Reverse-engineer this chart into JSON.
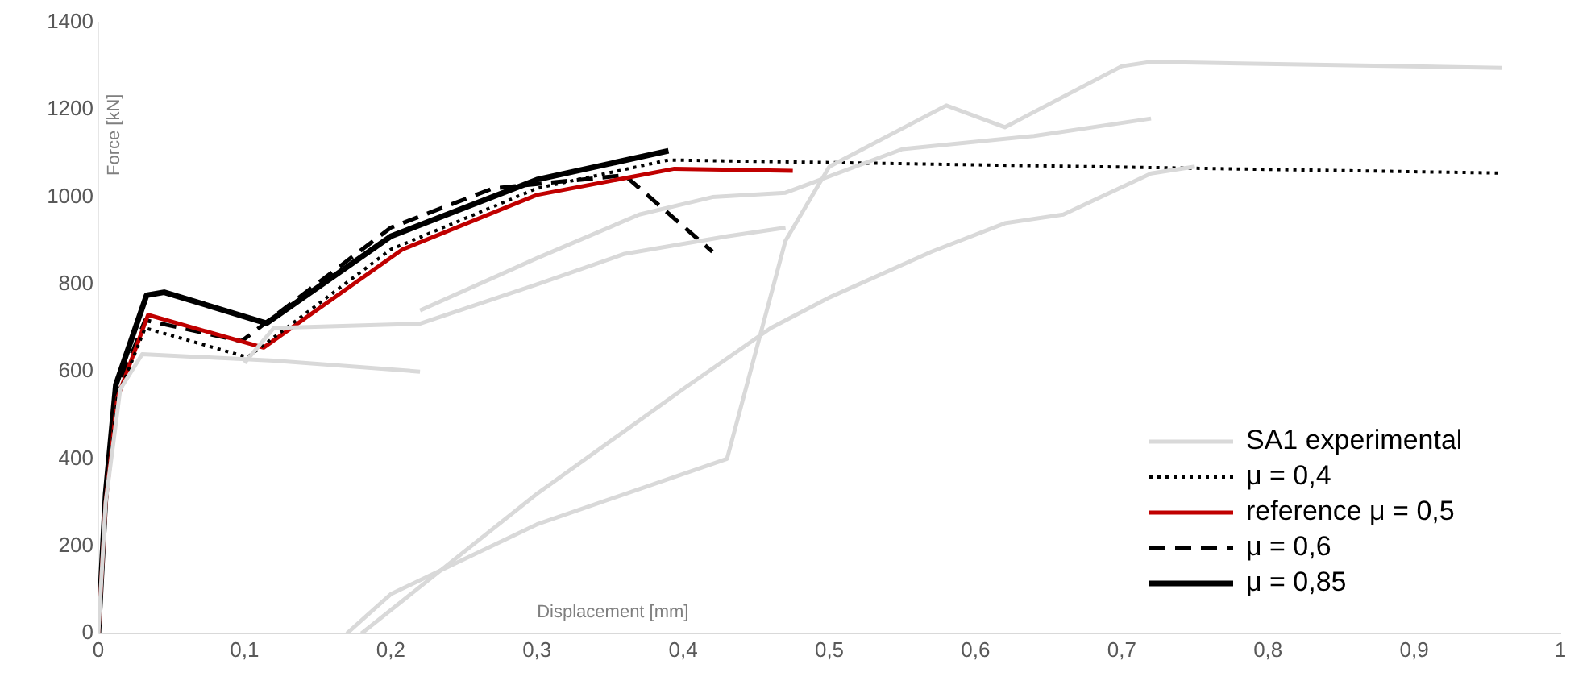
{
  "chart_data": {
    "type": "line",
    "xlabel": "Displacement [mm]",
    "ylabel": "Force [kN]",
    "xlim": [
      0,
      1
    ],
    "ylim": [
      0,
      1400
    ],
    "xticks": [
      0,
      {
        "value": 0.1,
        "label": "0,1"
      },
      {
        "value": 0.2,
        "label": "0,2"
      },
      {
        "value": 0.3,
        "label": "0,3"
      },
      {
        "value": 0.4,
        "label": "0,4"
      },
      {
        "value": 0.5,
        "label": "0,5"
      },
      {
        "value": 0.6,
        "label": "0,6"
      },
      {
        "value": 0.7,
        "label": "0,7"
      },
      {
        "value": 0.8,
        "label": "0,8"
      },
      {
        "value": 0.9,
        "label": "0,9"
      },
      1
    ],
    "yticks": [
      0,
      200,
      400,
      600,
      800,
      1000,
      1200,
      1400
    ],
    "grid": false,
    "legend": "bottom right",
    "marker": "none",
    "series": [
      {
        "name": "SA1 experimental",
        "color": "#d9d9d9",
        "line_style": "solid",
        "x": [
          0,
          0.005,
          0.015,
          0.03,
          0.12,
          0.22
        ],
        "values": [
          0,
          300,
          560,
          640,
          625,
          600
        ]
      },
      {
        "color": "#d9d9d9",
        "line_style": "solid",
        "x": [
          0.17,
          0.2,
          0.3,
          0.43,
          0.47,
          0.5,
          0.58,
          0.62,
          0.7,
          0.72,
          0.96
        ],
        "values": [
          0,
          90,
          250,
          400,
          900,
          1070,
          1210,
          1160,
          1300,
          1310,
          1296
        ]
      },
      {
        "color": "#d9d9d9",
        "line_style": "solid",
        "x": [
          0.18,
          0.3,
          0.4,
          0.46,
          0.5,
          0.57,
          0.62,
          0.66,
          0.72,
          0.75
        ],
        "values": [
          0,
          320,
          560,
          700,
          770,
          875,
          940,
          960,
          1054,
          1070
        ]
      },
      {
        "color": "#d9d9d9",
        "line_style": "solid",
        "x": [
          0.1,
          0.12,
          0.22,
          0.3,
          0.36,
          0.43,
          0.47
        ],
        "values": [
          620,
          700,
          710,
          800,
          870,
          910,
          930
        ]
      },
      {
        "color": "#d9d9d9",
        "line_style": "solid",
        "x": [
          0.22,
          0.3,
          0.37,
          0.42,
          0.47,
          0.55,
          0.64,
          0.72
        ],
        "values": [
          740,
          860,
          960,
          1000,
          1010,
          1110,
          1140,
          1180
        ]
      },
      {
        "name": "μ = 0,4",
        "color": "#000000",
        "line_style": "dotted",
        "x": [
          0,
          0.005,
          0.013,
          0.032,
          0.102,
          0.2,
          0.3,
          0.39,
          0.96
        ],
        "values": [
          0,
          300,
          540,
          700,
          633,
          880,
          1020,
          1085,
          1055
        ]
      },
      {
        "name": "reference μ = 0,5",
        "color": "#c00000",
        "line_style": "solid",
        "x": [
          0,
          0.005,
          0.013,
          0.034,
          0.113,
          0.208,
          0.3,
          0.394,
          0.475
        ],
        "values": [
          0,
          300,
          540,
          730,
          655,
          880,
          1005,
          1065,
          1060
        ]
      },
      {
        "name": "μ = 0,6",
        "color": "#000000",
        "line_style": "dashed",
        "x": [
          0,
          0.005,
          0.012,
          0.032,
          0.098,
          0.2,
          0.27,
          0.36,
          0.42
        ],
        "values": [
          0,
          300,
          550,
          718,
          670,
          930,
          1020,
          1050,
          875
        ]
      },
      {
        "name": "μ = 0,85",
        "color": "#000000",
        "line_style": "solid",
        "x": [
          0,
          0.005,
          0.012,
          0.033,
          0.045,
          0.115,
          0.2,
          0.3,
          0.39
        ],
        "values": [
          0,
          320,
          570,
          775,
          782,
          711,
          910,
          1040,
          1106
        ]
      }
    ]
  }
}
